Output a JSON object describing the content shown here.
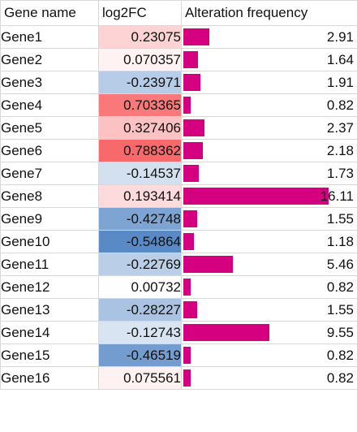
{
  "headers": {
    "gene": "Gene name",
    "fc": "log2FC",
    "freq": "Alteration frequency"
  },
  "colors": {
    "bar": "#d4007f",
    "positive": "#f8696b",
    "negative": "#5a8ac6",
    "neutral": "#ffffff"
  },
  "rows": [
    {
      "gene": "Gene1",
      "fc": "0.23075",
      "freq": "2.91"
    },
    {
      "gene": "Gene2",
      "fc": "0.070357",
      "freq": "1.64"
    },
    {
      "gene": "Gene3",
      "fc": "-0.23971",
      "freq": "1.91"
    },
    {
      "gene": "Gene4",
      "fc": "0.703365",
      "freq": "0.82"
    },
    {
      "gene": "Gene5",
      "fc": "0.327406",
      "freq": "2.37"
    },
    {
      "gene": "Gene6",
      "fc": "0.788362",
      "freq": "2.18"
    },
    {
      "gene": "Gene7",
      "fc": "-0.14537",
      "freq": "1.73"
    },
    {
      "gene": "Gene8",
      "fc": "0.193414",
      "freq": "16.11"
    },
    {
      "gene": "Gene9",
      "fc": "-0.42748",
      "freq": "1.55"
    },
    {
      "gene": "Gene10",
      "fc": "-0.54864",
      "freq": "1.18"
    },
    {
      "gene": "Gene11",
      "fc": "-0.22769",
      "freq": "5.46"
    },
    {
      "gene": "Gene12",
      "fc": "0.00732",
      "freq": "0.82"
    },
    {
      "gene": "Gene13",
      "fc": "-0.28227",
      "freq": "1.55"
    },
    {
      "gene": "Gene14",
      "fc": "-0.12743",
      "freq": "9.55"
    },
    {
      "gene": "Gene15",
      "fc": "-0.46519",
      "freq": "0.82"
    },
    {
      "gene": "Gene16",
      "fc": "0.075561",
      "freq": "0.82"
    }
  ]
}
